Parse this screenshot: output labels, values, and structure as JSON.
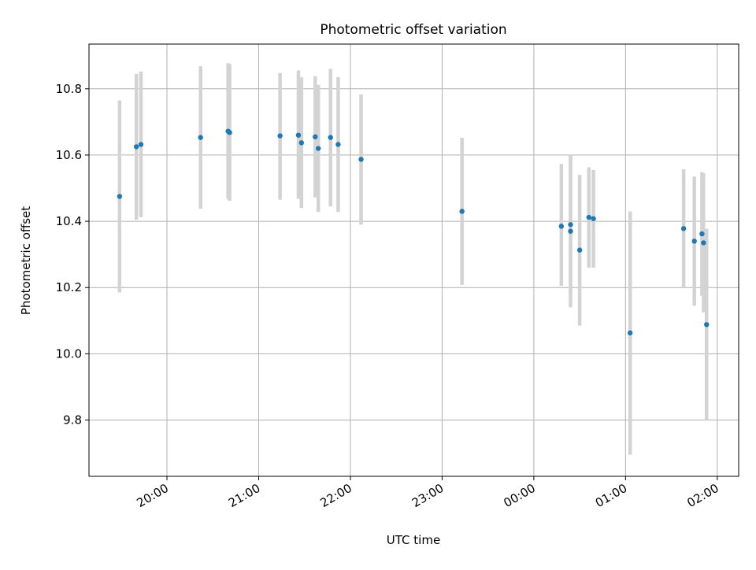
{
  "chart_data": {
    "type": "scatter",
    "title": "Photometric offset variation",
    "xlabel": "UTC time",
    "ylabel": "Photometric offset",
    "x_axis": {
      "type": "time",
      "ticks": [
        "20:00",
        "21:00",
        "22:00",
        "23:00",
        "00:00",
        "01:00",
        "02:00"
      ],
      "range": [
        "19:09",
        "02:14"
      ]
    },
    "y_axis": {
      "ticks": [
        "9.8",
        "10.0",
        "10.2",
        "10.4",
        "10.6",
        "10.8"
      ],
      "range": [
        9.63,
        10.935
      ]
    },
    "grid": true,
    "colors": {
      "point": "#1f77b4",
      "errorbar": "#d3d3d3",
      "grid": "#b0b0b0"
    },
    "points": [
      {
        "t": "19:29",
        "y": 10.475,
        "lo": 10.185,
        "hi": 10.765
      },
      {
        "t": "19:40",
        "y": 10.625,
        "lo": 10.405,
        "hi": 10.845
      },
      {
        "t": "19:43",
        "y": 10.632,
        "lo": 10.412,
        "hi": 10.852
      },
      {
        "t": "20:22",
        "y": 10.653,
        "lo": 10.438,
        "hi": 10.868
      },
      {
        "t": "20:40",
        "y": 10.672,
        "lo": 10.467,
        "hi": 10.877
      },
      {
        "t": "20:41",
        "y": 10.668,
        "lo": 10.462,
        "hi": 10.875
      },
      {
        "t": "21:14",
        "y": 10.658,
        "lo": 10.465,
        "hi": 10.848
      },
      {
        "t": "21:26",
        "y": 10.66,
        "lo": 10.468,
        "hi": 10.855
      },
      {
        "t": "21:28",
        "y": 10.637,
        "lo": 10.44,
        "hi": 10.835
      },
      {
        "t": "21:37",
        "y": 10.655,
        "lo": 10.472,
        "hi": 10.838
      },
      {
        "t": "21:39",
        "y": 10.62,
        "lo": 10.428,
        "hi": 10.812
      },
      {
        "t": "21:47",
        "y": 10.653,
        "lo": 10.445,
        "hi": 10.86
      },
      {
        "t": "21:52",
        "y": 10.632,
        "lo": 10.428,
        "hi": 10.835
      },
      {
        "t": "22:07",
        "y": 10.587,
        "lo": 10.39,
        "hi": 10.783
      },
      {
        "t": "23:13",
        "y": 10.43,
        "lo": 10.208,
        "hi": 10.652
      },
      {
        "t": "00:18",
        "y": 10.385,
        "lo": 10.205,
        "hi": 10.573
      },
      {
        "t": "00:24",
        "y": 10.39,
        "lo": 10.18,
        "hi": 10.6
      },
      {
        "t": "00:24",
        "y": 10.37,
        "lo": 10.14,
        "hi": 10.6
      },
      {
        "t": "00:30",
        "y": 10.313,
        "lo": 10.085,
        "hi": 10.54
      },
      {
        "t": "00:36",
        "y": 10.412,
        "lo": 10.26,
        "hi": 10.563
      },
      {
        "t": "00:39",
        "y": 10.408,
        "lo": 10.26,
        "hi": 10.555
      },
      {
        "t": "01:03",
        "y": 10.063,
        "lo": 9.695,
        "hi": 10.43
      },
      {
        "t": "01:38",
        "y": 10.378,
        "lo": 10.2,
        "hi": 10.557
      },
      {
        "t": "01:45",
        "y": 10.34,
        "lo": 10.145,
        "hi": 10.535
      },
      {
        "t": "01:50",
        "y": 10.362,
        "lo": 10.175,
        "hi": 10.548
      },
      {
        "t": "01:51",
        "y": 10.335,
        "lo": 10.125,
        "hi": 10.545
      },
      {
        "t": "01:53",
        "y": 10.088,
        "lo": 9.8,
        "hi": 10.378
      }
    ]
  }
}
